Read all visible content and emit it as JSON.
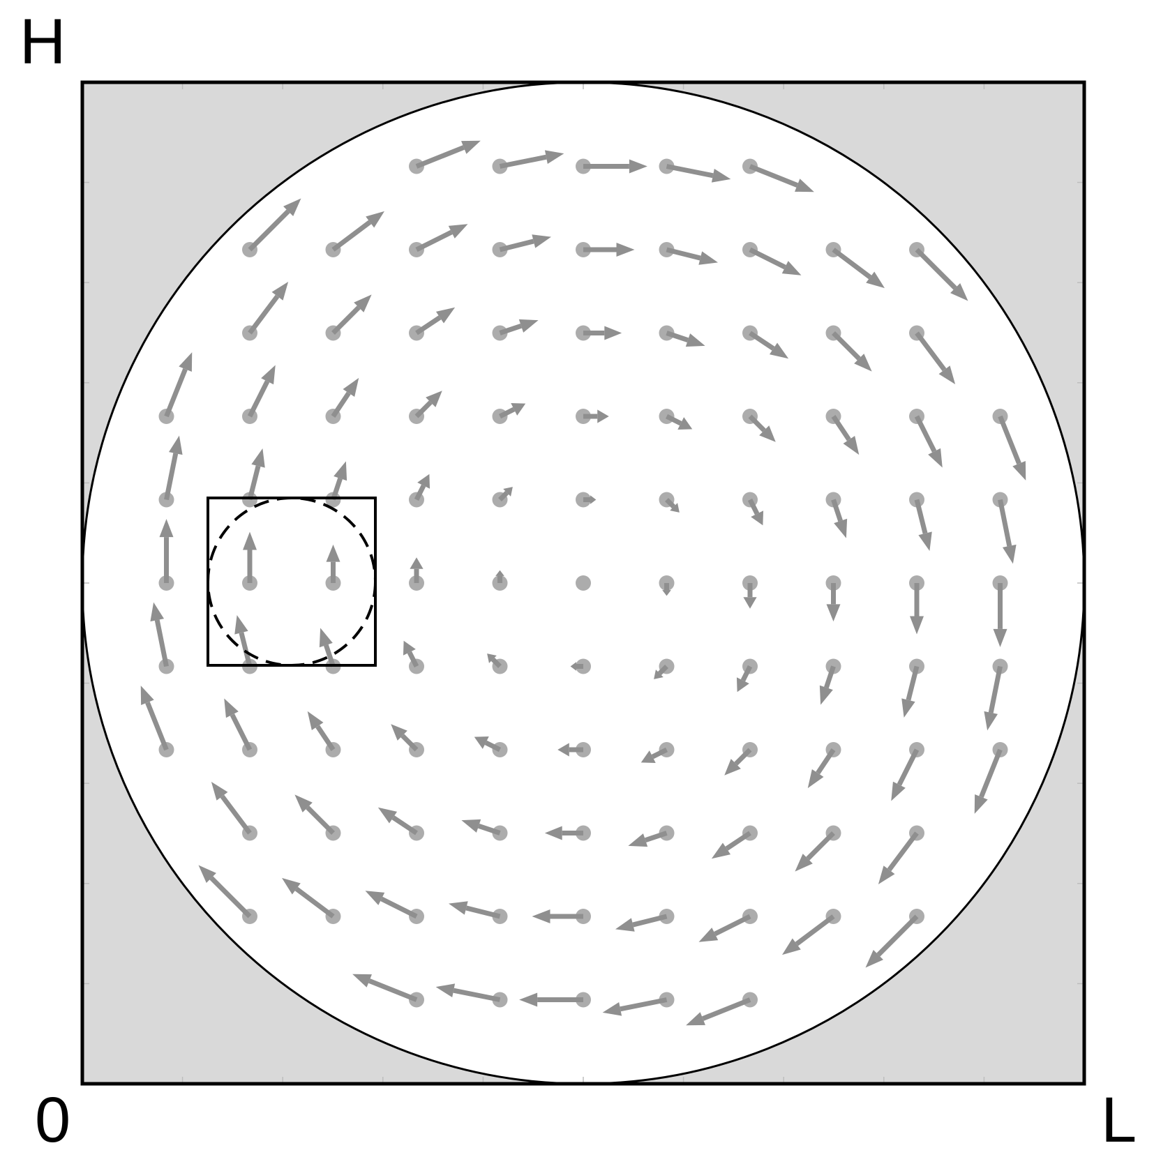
{
  "labels": {
    "top_left": "H",
    "bottom_left": "0",
    "bottom_right": "L"
  },
  "colors": {
    "background": "#ffffff",
    "outside_circle_fill": "#d9d9d9",
    "arrow": "#8f8f8f",
    "arrow_dot": "#a3a3a3",
    "frame": "#000000"
  },
  "field": {
    "description_type": "vortex vector field inside circular domain",
    "grid_columns": 11,
    "grid_rows": 11,
    "rotation": "clockwise",
    "inset_box": {
      "style": "solid square with inscribed dashed circle",
      "position": "left-middle"
    }
  }
}
